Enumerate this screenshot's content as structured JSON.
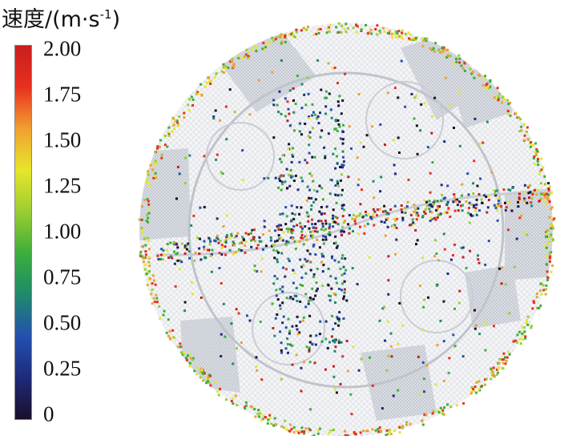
{
  "legend": {
    "title_main": "速度/(m·s",
    "title_sup": "-1",
    "title_close": ")",
    "ticks": [
      "2.00",
      "1.75",
      "1.50",
      "1.25",
      "1.00",
      "0.75",
      "0.50",
      "0.25",
      "0"
    ],
    "colormap": [
      "#1a0f2a",
      "#1f2a7a",
      "#2450b0",
      "#1f8a6a",
      "#3cae3c",
      "#9acd32",
      "#e6e62a",
      "#f0a030",
      "#e83020",
      "#c81e1e"
    ]
  },
  "figure": {
    "background": "#ffffff",
    "disc_color": "#f4f5f7",
    "mesh_color": "#c9ccd2",
    "blade_color": "#cfd3da"
  }
}
